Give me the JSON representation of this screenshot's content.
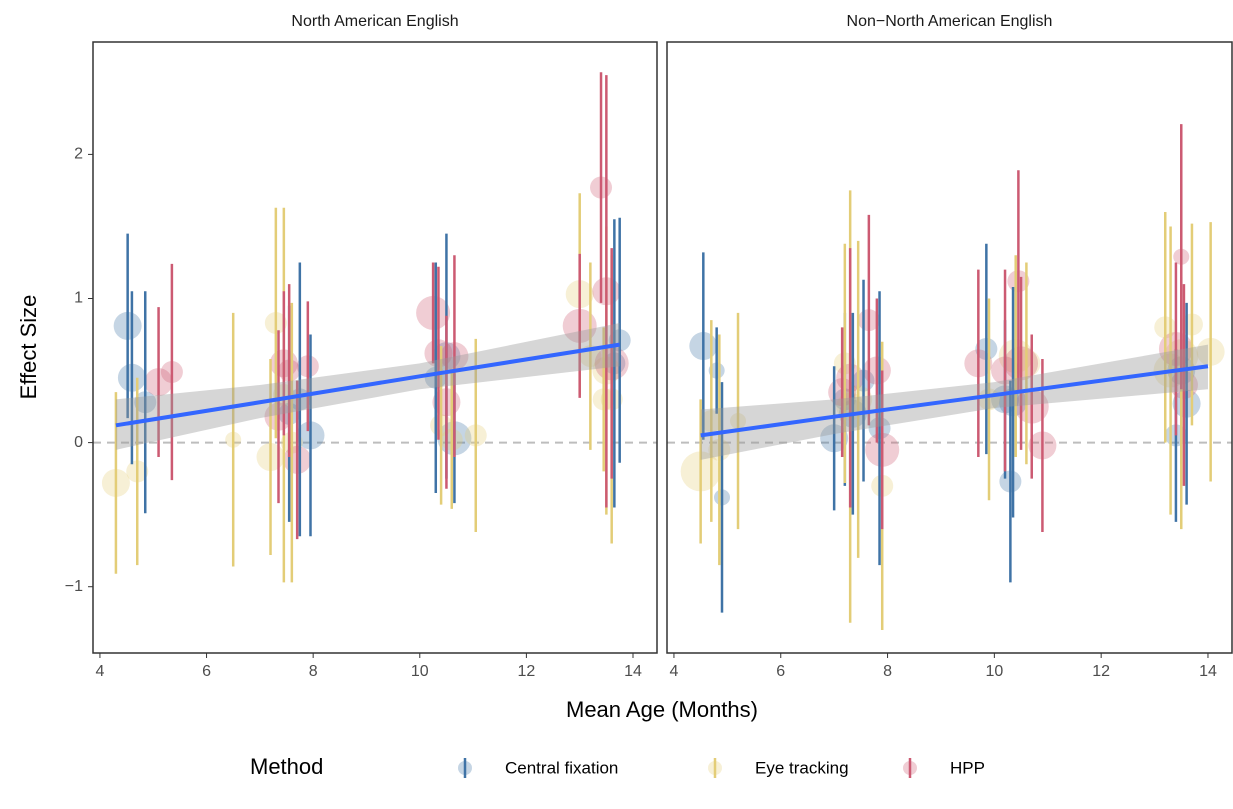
{
  "chart_data": {
    "type": "scatter",
    "x_label": "Mean Age (Months)",
    "y_label": "Effect Size",
    "legend_title": "Method",
    "xlim": [
      3.87,
      14.45
    ],
    "xticks": [
      4,
      6,
      8,
      10,
      12,
      14
    ],
    "ylim": [
      -1.46,
      2.78
    ],
    "yticks": [
      {
        "value": -1,
        "label": "−1"
      },
      0,
      1,
      2
    ],
    "reference_line": 0,
    "fit_color": "#3366ff",
    "series": [
      {
        "name": "Central fixation",
        "color": "#3f73a6"
      },
      {
        "name": "Eye tracking",
        "color": "#e3cd77"
      },
      {
        "name": "HPP",
        "color": "#cc5a72"
      }
    ],
    "panels": [
      {
        "title": "North American English",
        "groups": [
          {
            "x": [
              4.52,
              4.6,
              4.85,
              7.55,
              7.75,
              7.95,
              10.3,
              10.5,
              10.65,
              13.65,
              13.75
            ],
            "values": [
              0.81,
              0.45,
              0.28,
              0.2,
              0.3,
              0.05,
              0.45,
              0.6,
              0.03,
              0.55,
              0.71
            ],
            "errors": [
              0.64,
              0.6,
              0.77,
              0.75,
              0.95,
              0.7,
              0.8,
              0.85,
              0.45,
              1.0,
              0.85
            ],
            "sizes": [
              3,
              3,
              2,
              2,
              2,
              3,
              2,
              3,
              4,
              2,
              2
            ]
          },
          {
            "x": [
              4.3,
              4.7,
              6.5,
              7.2,
              7.3,
              7.45,
              7.6,
              10.4,
              10.6,
              11.05,
              13.0,
              13.2,
              13.45,
              13.5,
              13.6
            ],
            "values": [
              -0.28,
              -0.2,
              0.02,
              -0.1,
              0.83,
              0.33,
              0.0,
              0.12,
              0.02,
              0.05,
              1.03,
              0.6,
              0.3,
              0.5,
              0.3
            ],
            "errors": [
              0.63,
              0.65,
              0.88,
              0.68,
              0.8,
              1.3,
              0.97,
              0.55,
              0.48,
              0.67,
              0.7,
              0.65,
              0.5,
              1.0,
              1.0
            ],
            "sizes": [
              3,
              2,
              1,
              3,
              2,
              2,
              2,
              2,
              2,
              2,
              3,
              2,
              2,
              3,
              2
            ]
          },
          {
            "x": [
              5.1,
              5.35,
              7.35,
              7.45,
              7.55,
              7.7,
              7.9,
              10.25,
              10.35,
              10.5,
              10.65,
              13.0,
              13.4,
              13.5,
              13.6
            ],
            "values": [
              0.42,
              0.49,
              0.18,
              0.55,
              0.5,
              -0.12,
              0.53,
              0.9,
              0.62,
              0.28,
              0.6,
              0.81,
              1.77,
              1.05,
              0.55
            ],
            "errors": [
              0.52,
              0.75,
              0.6,
              0.5,
              0.6,
              0.55,
              0.45,
              0.35,
              0.6,
              0.6,
              0.7,
              0.5,
              0.8,
              1.5,
              0.8
            ],
            "sizes": [
              3,
              2,
              3,
              3,
              2,
              3,
              2,
              4,
              3,
              3,
              3,
              4,
              2,
              3,
              4
            ]
          }
        ],
        "fit": {
          "x": [
            4.3,
            7,
            10,
            13.75
          ],
          "values": [
            0.12,
            0.28,
            0.46,
            0.68
          ],
          "band_low": [
            -0.05,
            0.17,
            0.37,
            0.53
          ],
          "band_high": [
            0.3,
            0.4,
            0.55,
            0.83
          ]
        }
      },
      {
        "title": "Non−North American English",
        "groups": [
          {
            "x": [
              4.55,
              4.8,
              4.9,
              7.0,
              7.2,
              7.35,
              7.55,
              7.85,
              9.85,
              10.2,
              10.3,
              10.35,
              13.4,
              13.5,
              13.6
            ],
            "values": [
              0.67,
              0.5,
              -0.38,
              0.03,
              0.3,
              0.2,
              0.43,
              0.1,
              0.65,
              0.3,
              -0.27,
              0.28,
              0.05,
              0.5,
              0.27
            ],
            "errors": [
              0.65,
              0.3,
              0.8,
              0.5,
              0.6,
              0.7,
              0.7,
              0.95,
              0.73,
              0.55,
              0.7,
              0.8,
              0.6,
              0.65,
              0.7
            ],
            "sizes": [
              3,
              1,
              1,
              3,
              2,
              3,
              2,
              2,
              2,
              3,
              2,
              3,
              2,
              3,
              3
            ]
          },
          {
            "x": [
              4.5,
              4.7,
              4.85,
              5.2,
              7.2,
              7.3,
              7.45,
              7.9,
              9.9,
              10.4,
              10.6,
              13.2,
              13.3,
              13.5,
              13.7,
              14.05
            ],
            "values": [
              -0.2,
              0.15,
              -0.05,
              0.15,
              0.55,
              0.25,
              0.3,
              -0.3,
              0.3,
              0.6,
              0.55,
              0.8,
              0.5,
              0.6,
              0.82,
              0.63
            ],
            "errors": [
              0.5,
              0.7,
              0.8,
              0.75,
              0.83,
              1.5,
              1.1,
              1.0,
              0.7,
              0.7,
              0.7,
              0.8,
              1.0,
              1.2,
              0.7,
              0.9
            ],
            "sizes": [
              5,
              2,
              2,
              1,
              2,
              3,
              3,
              2,
              2,
              4,
              3,
              2,
              4,
              4,
              2,
              3
            ]
          },
          {
            "x": [
              7.15,
              7.3,
              7.65,
              7.8,
              7.9,
              9.7,
              10.2,
              10.45,
              10.5,
              10.7,
              10.9,
              13.4,
              13.5,
              13.55
            ],
            "values": [
              0.35,
              0.45,
              0.85,
              0.5,
              -0.05,
              0.55,
              0.5,
              1.12,
              0.55,
              0.25,
              -0.02,
              0.65,
              1.29,
              0.4
            ],
            "errors": [
              0.45,
              0.9,
              0.73,
              0.5,
              0.55,
              0.65,
              0.7,
              0.77,
              0.6,
              0.5,
              0.6,
              0.6,
              0.92,
              0.7
            ],
            "sizes": [
              3,
              3,
              2,
              3,
              4,
              3,
              3,
              2,
              4,
              4,
              3,
              4,
              1,
              3
            ]
          }
        ],
        "fit": {
          "x": [
            4.5,
            7,
            10,
            14
          ],
          "values": [
            0.05,
            0.18,
            0.33,
            0.53
          ],
          "band_low": [
            -0.12,
            0.06,
            0.24,
            0.37
          ],
          "band_high": [
            0.23,
            0.3,
            0.42,
            0.68
          ]
        }
      }
    ]
  }
}
